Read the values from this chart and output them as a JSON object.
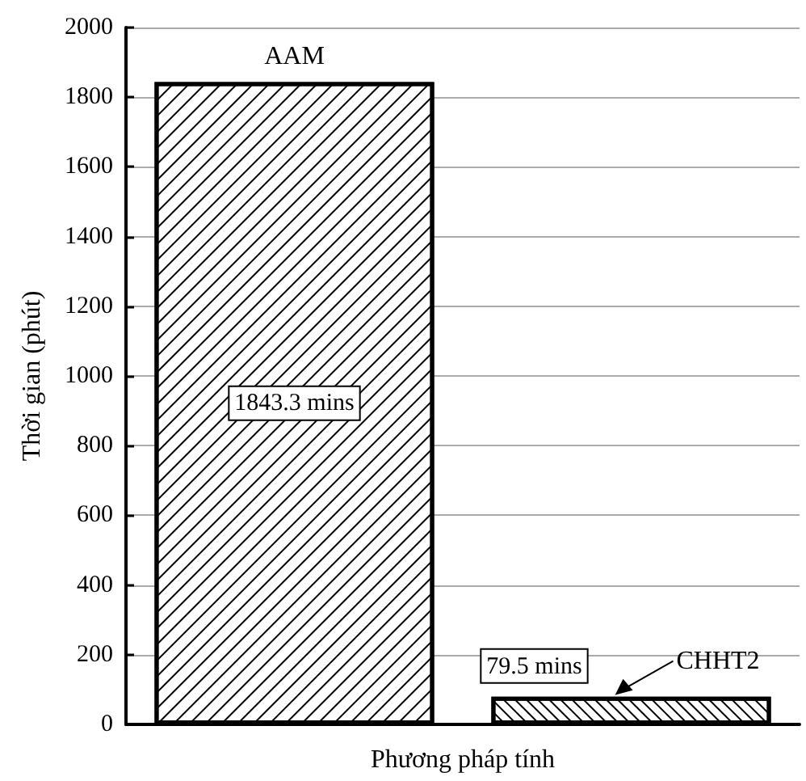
{
  "chart_data": {
    "type": "bar",
    "xlabel": "Phương pháp tính",
    "ylabel": "Thời gian (phút)",
    "categories": [
      "AAM",
      "CHHT2"
    ],
    "values": [
      1843.3,
      79.5
    ],
    "value_labels": [
      "1843.3 mins",
      "79.5 mins"
    ],
    "color": "#ffffff",
    "ylim": [
      0,
      2000
    ],
    "yticks": [
      0,
      200,
      400,
      600,
      800,
      1000,
      1200,
      1400,
      1600,
      1800,
      2000
    ],
    "grid": "y",
    "tick_labels": "y"
  }
}
